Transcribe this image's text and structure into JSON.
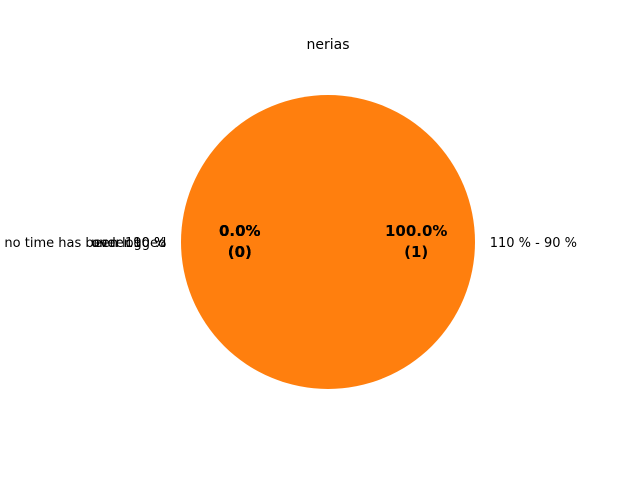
{
  "chart_data": {
    "type": "pie",
    "title": "nerias",
    "slices": [
      {
        "label": "110 % - 90 %",
        "value": 1,
        "percent_label": "100.0%",
        "count_label": "(1)",
        "color": "#ff7f0e"
      },
      {
        "label": "under 90 %",
        "value": 0,
        "percent_label": "0.0%",
        "count_label": "(0)",
        "color": "#1f77b4"
      },
      {
        "label": "over 110 %",
        "value": 0,
        "percent_label": "0.0%",
        "count_label": "(0)",
        "color": "#2ca02c"
      },
      {
        "label": "no time has been logged",
        "value": 0,
        "percent_label": "0.0%",
        "count_label": "(0)",
        "color": "#d62728"
      }
    ]
  }
}
